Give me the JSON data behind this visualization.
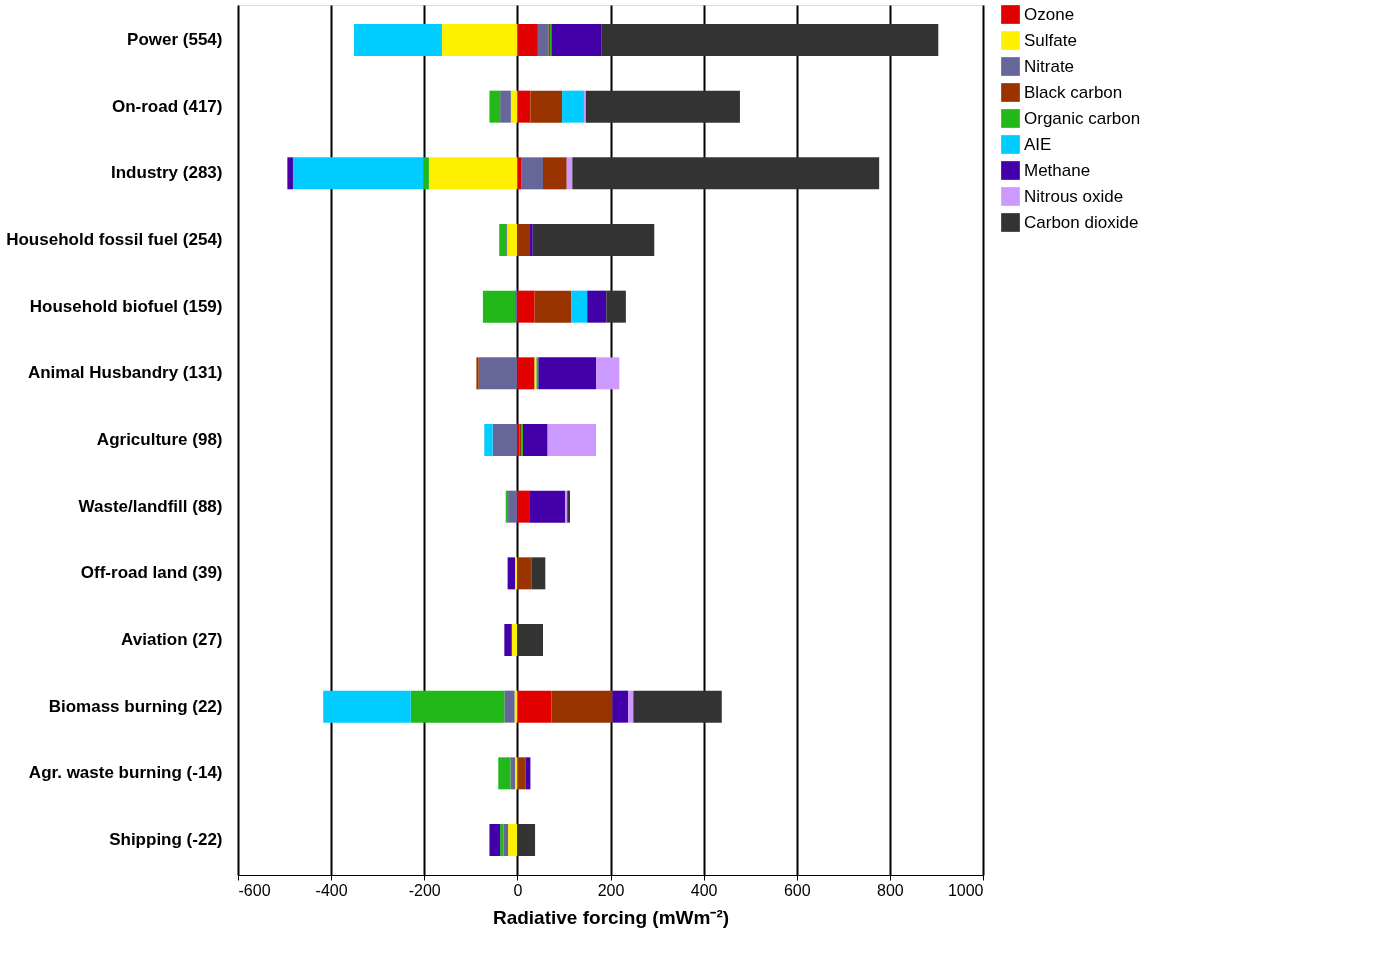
{
  "chart_data": {
    "type": "bar",
    "orientation": "horizontal",
    "stacked": true,
    "categories": [
      "Power (554)",
      "On-road (417)",
      "Industry (283)",
      "Household fossil fuel (254)",
      "Household biofuel (159)",
      "Animal Husbandry (131)",
      "Agriculture (98)",
      "Waste/landfill (88)",
      "Off-road land (39)",
      "Aviation (27)",
      "Biomass burning (22)",
      "Agr. waste burning (-14)",
      "Shipping (-22)"
    ],
    "series": [
      {
        "name": "Ozone",
        "color": "#e00000",
        "values": [
          44,
          28,
          8,
          0,
          37,
          37,
          4,
          27,
          0,
          0,
          73,
          2,
          0
        ]
      },
      {
        "name": "Sulfate",
        "color": "#fff000",
        "values": [
          -162,
          -14,
          -190,
          -22,
          0,
          4,
          0,
          0,
          -5,
          -12,
          -6,
          -5,
          -20
        ]
      },
      {
        "name": "Nitrate",
        "color": "#666699",
        "values": [
          23,
          -23,
          47,
          -2,
          -5,
          -83,
          -53,
          -20,
          0,
          0,
          -22,
          -10,
          -10
        ]
      },
      {
        "name": "Black carbon",
        "color": "#993300",
        "values": [
          3,
          68,
          51,
          27,
          79,
          -5,
          4,
          0,
          30,
          0,
          131,
          16,
          0
        ]
      },
      {
        "name": "Organic carbon",
        "color": "#22b81a",
        "values": [
          3,
          -23,
          -12,
          -15,
          -69,
          4,
          4,
          -5,
          0,
          0,
          -201,
          -26,
          -7
        ]
      },
      {
        "name": "AIE",
        "color": "#00ccff",
        "values": [
          -189,
          47,
          -280,
          0,
          34,
          0,
          -18,
          0,
          0,
          0,
          -188,
          0,
          0
        ]
      },
      {
        "name": "Methane",
        "color": "#4400a8",
        "values": [
          107,
          0,
          -12,
          6,
          41,
          124,
          53,
          76,
          -16,
          -16,
          34,
          10,
          -23
        ]
      },
      {
        "name": "Nitrous oxide",
        "color": "#cc99ff",
        "values": [
          0,
          4,
          12,
          0,
          0,
          50,
          104,
          4,
          0,
          0,
          11,
          0,
          0
        ]
      },
      {
        "name": "Carbon dioxide",
        "color": "#333333",
        "values": [
          724,
          331,
          659,
          261,
          42,
          0,
          0,
          6,
          30,
          55,
          190,
          0,
          38
        ]
      }
    ],
    "xlim": [
      -600,
      1000
    ],
    "xticks": [
      -600,
      -400,
      -200,
      0,
      200,
      400,
      600,
      800,
      1000
    ],
    "xlabel": "Radiative forcing (mWm⁻²)",
    "grid": "x",
    "legend": "right"
  }
}
